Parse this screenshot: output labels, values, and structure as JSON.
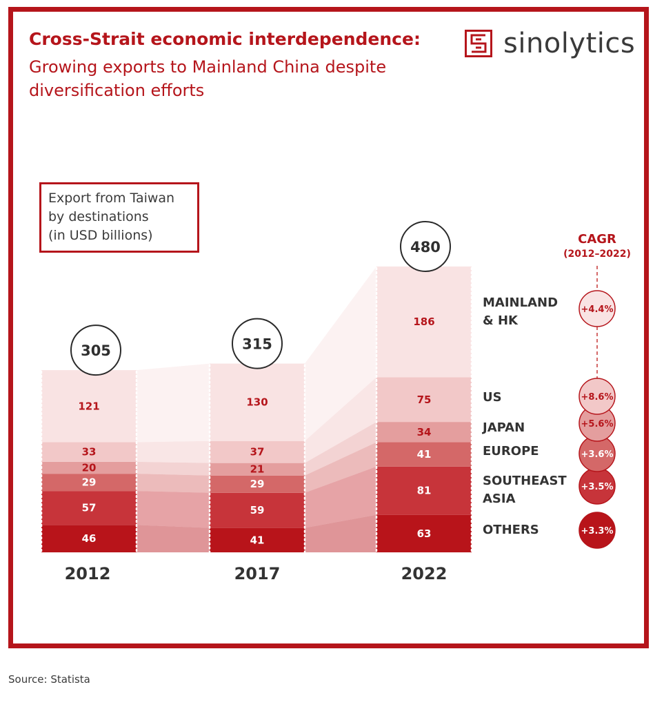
{
  "title": "Cross-Strait economic interdependence:",
  "subtitle": "Growing exports to Mainland China despite diversification efforts",
  "logo": {
    "text": "sinolytics",
    "icon": "sinolytics-logo-icon"
  },
  "legend_box": {
    "line1": "Export from Taiwan",
    "line2": "by destinations",
    "line3": "(in USD billions)"
  },
  "cagr_header": {
    "title": "CAGR",
    "period": "(2012–2022)"
  },
  "source": "Source: Statista",
  "colors": {
    "accent": "#b5151b",
    "segments": [
      "#b8141a",
      "#c7343a",
      "#d46868",
      "#e49e9e",
      "#f2c8c8",
      "#f9e3e3"
    ]
  },
  "chart_data": {
    "type": "bar",
    "stacked": true,
    "categories": [
      "2012",
      "2017",
      "2022"
    ],
    "totals": [
      305,
      315,
      480
    ],
    "series": [
      {
        "name": "OTHERS",
        "values": [
          46,
          41,
          63
        ],
        "cagr": "+3.3%"
      },
      {
        "name": "SOUTHEAST ASIA",
        "values": [
          57,
          59,
          81
        ],
        "cagr": "+3.5%"
      },
      {
        "name": "EUROPE",
        "values": [
          29,
          29,
          41
        ],
        "cagr": "+3.6%"
      },
      {
        "name": "JAPAN",
        "values": [
          20,
          21,
          34
        ],
        "cagr": "+5.6%"
      },
      {
        "name": "US",
        "values": [
          33,
          37,
          75
        ],
        "cagr": "+8.6%"
      },
      {
        "name": "MAINLAND & HK",
        "values": [
          121,
          130,
          186
        ],
        "cagr": "+4.4%"
      }
    ]
  }
}
